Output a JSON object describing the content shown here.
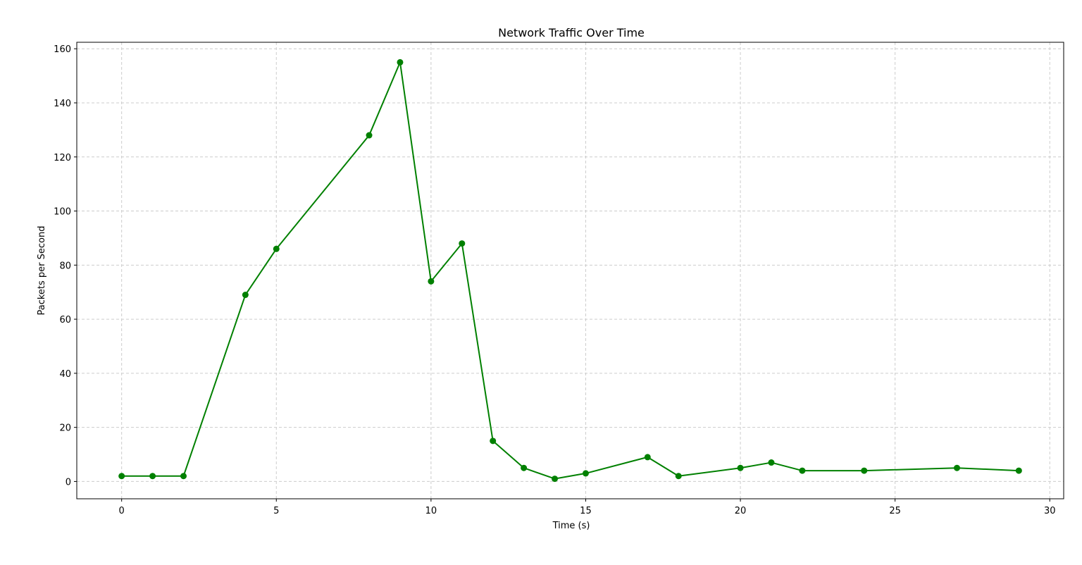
{
  "chart_data": {
    "type": "line",
    "title": "Network Traffic Over Time",
    "xlabel": "Time (s)",
    "ylabel": "Packets per Second",
    "xlim": [
      -1.45,
      30.45
    ],
    "ylim": [
      -6.4,
      162.4
    ],
    "x_ticks": [
      0,
      5,
      10,
      15,
      20,
      25,
      30
    ],
    "y_ticks": [
      0,
      20,
      40,
      60,
      80,
      100,
      120,
      140,
      160
    ],
    "grid": true,
    "legend": "none",
    "series": [
      {
        "color": "#008000",
        "marker": "circle",
        "x": [
          0,
          1,
          2,
          4,
          5,
          8,
          9,
          10,
          11,
          12,
          13,
          14,
          15,
          17,
          18,
          20,
          21,
          22,
          24,
          27,
          29
        ],
        "y": [
          2,
          2,
          2,
          69,
          86,
          128,
          155,
          74,
          88,
          15,
          5,
          1,
          3,
          9,
          2,
          5,
          7,
          4,
          4,
          5,
          4
        ]
      }
    ]
  }
}
